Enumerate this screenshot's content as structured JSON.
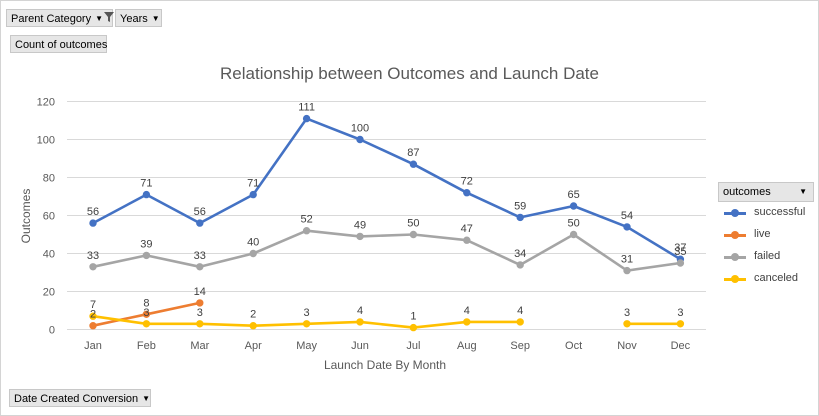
{
  "filters": {
    "parent_category": "Parent Category",
    "years": "Years",
    "count_of_outcomes": "Count of outcomes",
    "date_created": "Date Created Conversion"
  },
  "icons": {
    "filter": "filter-funnel-icon",
    "dropdown": "dropdown-arrow-icon"
  },
  "legend": {
    "title": "outcomes"
  },
  "chart_data": {
    "type": "line",
    "title": "Relationship between Outcomes and Launch Date",
    "xlabel": "Launch Date By Month",
    "ylabel": "Outcomes",
    "categories": [
      "Jan",
      "Feb",
      "Mar",
      "Apr",
      "May",
      "Jun",
      "Jul",
      "Aug",
      "Sep",
      "Oct",
      "Nov",
      "Dec"
    ],
    "ylim": [
      0,
      120
    ],
    "yticks": [
      "0",
      "20",
      "40",
      "60",
      "80",
      "100",
      "120"
    ],
    "grid": true,
    "legend_position": "right",
    "series": [
      {
        "name": "successful",
        "color": "#4472C4",
        "values": [
          56,
          71,
          56,
          71,
          111,
          100,
          87,
          72,
          59,
          65,
          54,
          37
        ]
      },
      {
        "name": "live",
        "color": "#ED7D31",
        "values": [
          2,
          8,
          14,
          null,
          null,
          null,
          null,
          null,
          null,
          null,
          null,
          null
        ]
      },
      {
        "name": "failed",
        "color": "#A5A5A5",
        "values": [
          33,
          39,
          33,
          40,
          52,
          49,
          50,
          47,
          34,
          50,
          31,
          35
        ]
      },
      {
        "name": "canceled",
        "color": "#FFC000",
        "values": [
          7,
          3,
          3,
          2,
          3,
          4,
          1,
          4,
          4,
          null,
          3,
          3
        ]
      }
    ]
  }
}
